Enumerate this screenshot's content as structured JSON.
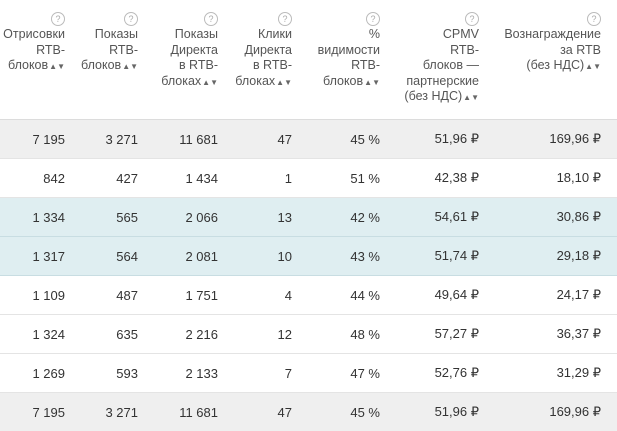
{
  "table": {
    "headers": [
      [
        "Отрисовки",
        "RTB-",
        "блоков"
      ],
      [
        "Показы",
        "RTB-",
        "блоков"
      ],
      [
        "Показы",
        "Директа",
        "в RTB-",
        "блоках"
      ],
      [
        "Клики",
        "Директа",
        "в RTB-",
        "блоках"
      ],
      [
        "%",
        "видимости",
        "RTB-",
        "блоков"
      ],
      [
        "CPMV",
        "RTB-",
        "блоков —",
        "партнерские",
        "(без НДС)"
      ],
      [
        "Вознаграждение",
        "за RTB",
        "(без НДС)"
      ]
    ],
    "hint_icon": "?",
    "sort_icon": "▲▼",
    "rows": [
      [
        "7 195",
        "3 271",
        "11 681",
        "47",
        "45 %",
        "51,96 ₽",
        "169,96 ₽"
      ],
      [
        "842",
        "427",
        "1 434",
        "1",
        "51 %",
        "42,38 ₽",
        "18,10 ₽"
      ],
      [
        "1 334",
        "565",
        "2 066",
        "13",
        "42 %",
        "54,61 ₽",
        "30,86 ₽"
      ],
      [
        "1 317",
        "564",
        "2 081",
        "10",
        "43 %",
        "51,74 ₽",
        "29,18 ₽"
      ],
      [
        "1 109",
        "487",
        "1 751",
        "4",
        "44 %",
        "49,64 ₽",
        "24,17 ₽"
      ],
      [
        "1 324",
        "635",
        "2 216",
        "12",
        "48 %",
        "57,27 ₽",
        "36,37 ₽"
      ],
      [
        "1 269",
        "593",
        "2 133",
        "7",
        "47 %",
        "52,76 ₽",
        "31,29 ₽"
      ],
      [
        "7 195",
        "3 271",
        "11 681",
        "47",
        "45 %",
        "51,96 ₽",
        "169,96 ₽"
      ]
    ],
    "row_styles": [
      "total",
      "normal",
      "highlight",
      "highlight",
      "normal",
      "normal",
      "normal",
      "total"
    ]
  },
  "colors": {
    "total_row_bg": "#efefef",
    "highlight_row_bg": "#dfeef1"
  }
}
